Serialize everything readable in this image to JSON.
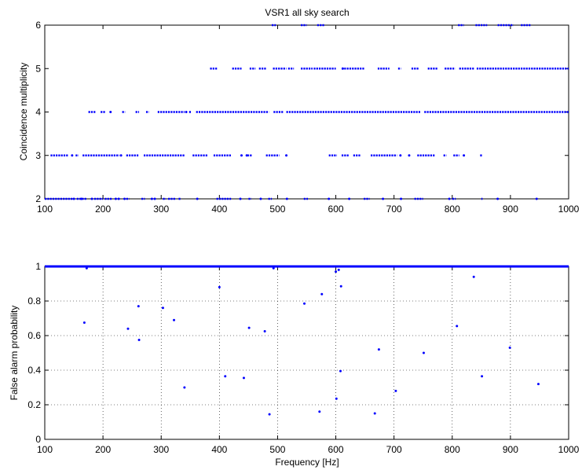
{
  "chart_data": [
    {
      "type": "scatter",
      "title": "VSR1 all sky search",
      "xlabel": "",
      "ylabel": "Coincidence multiplicity",
      "xlim": [
        100,
        1000
      ],
      "ylim": [
        2,
        6
      ],
      "xticks": [
        100,
        200,
        300,
        400,
        500,
        600,
        700,
        800,
        900,
        1000
      ],
      "yticks": [
        2,
        3,
        4,
        5,
        6
      ],
      "grid": false,
      "marker_color": "#0000ff",
      "levels": [
        {
          "y": 6,
          "ranges": [
            [
              490,
              497
            ],
            [
              540,
              550
            ],
            [
              568,
              580
            ],
            [
              810,
              820
            ],
            [
              840,
              860
            ],
            [
              878,
              905
            ],
            [
              918,
              935
            ]
          ]
        },
        {
          "y": 5,
          "ranges": [
            [
              384,
              397
            ],
            [
              422,
              438
            ],
            [
              452,
              462
            ],
            [
              468,
              480
            ],
            [
              492,
              515
            ],
            [
              518,
              528
            ],
            [
              540,
              560
            ],
            [
              562,
              600
            ],
            [
              610,
              650
            ],
            [
              672,
              692
            ],
            [
              707,
              712
            ],
            [
              730,
              742
            ],
            [
              758,
              775
            ],
            [
              787,
              805
            ],
            [
              812,
              838
            ],
            [
              842,
              1000
            ]
          ]
        },
        {
          "y": 4,
          "ranges": [
            [
              175,
              188
            ],
            [
              196,
              204
            ],
            [
              233,
              238
            ],
            [
              256,
              262
            ],
            [
              274,
              279
            ],
            [
              294,
              340
            ],
            [
              348,
              352
            ],
            [
              360,
              485
            ],
            [
              493,
              510
            ],
            [
              515,
              745
            ],
            [
              752,
              1000
            ]
          ]
        },
        {
          "y": 3,
          "ranges": [
            [
              110,
              140
            ],
            [
              153,
              158
            ],
            [
              165,
              228
            ],
            [
              240,
              262
            ],
            [
              270,
              340
            ],
            [
              354,
              380
            ],
            [
              390,
              420
            ],
            [
              448,
              456
            ],
            [
              480,
              503
            ],
            [
              588,
              602
            ],
            [
              610,
              622
            ],
            [
              630,
              643
            ],
            [
              660,
              705
            ],
            [
              740,
              770
            ],
            [
              785,
              790
            ],
            [
              802,
              812
            ],
            [
              848,
              852
            ]
          ]
        },
        {
          "y": 2,
          "ranges": [
            [
              100,
              148
            ],
            [
              155,
              172
            ],
            [
              185,
              200
            ],
            [
              203,
              215
            ],
            [
              240,
              245
            ],
            [
              266,
              272
            ],
            [
              303,
              308
            ],
            [
              312,
              324
            ],
            [
              330,
              334
            ],
            [
              395,
              420
            ],
            [
              450,
              455
            ],
            [
              484,
              490
            ],
            [
              545,
              552
            ],
            [
              648,
              658
            ],
            [
              735,
              750
            ],
            [
              800,
              806
            ],
            [
              850,
              852
            ]
          ]
        }
      ],
      "points": [
        [
          147,
          3
        ],
        [
          150,
          2
        ],
        [
          163,
          2
        ],
        [
          181,
          2
        ],
        [
          222,
          2
        ],
        [
          227,
          2
        ],
        [
          237,
          2
        ],
        [
          284,
          2
        ],
        [
          289,
          2
        ],
        [
          362,
          2
        ],
        [
          436,
          2
        ],
        [
          471,
          2
        ],
        [
          516,
          2
        ],
        [
          588,
          2
        ],
        [
          623,
          2
        ],
        [
          681,
          2
        ],
        [
          712,
          2
        ],
        [
          795,
          2
        ],
        [
          878,
          2
        ],
        [
          945,
          2
        ],
        [
          213,
          4
        ],
        [
          231,
          3
        ],
        [
          343,
          4
        ],
        [
          438,
          3
        ],
        [
          447,
          3
        ],
        [
          515,
          3
        ],
        [
          711,
          3
        ],
        [
          726,
          3
        ],
        [
          820,
          3
        ],
        [
          612,
          5
        ]
      ]
    },
    {
      "type": "scatter",
      "title": "",
      "xlabel": "Frequency [Hz]",
      "ylabel": "False alarm probability",
      "xlim": [
        100,
        1000
      ],
      "ylim": [
        0,
        1
      ],
      "xticks": [
        100,
        200,
        300,
        400,
        500,
        600,
        700,
        800,
        900,
        1000
      ],
      "yticks": [
        0,
        0.2,
        0.4,
        0.6,
        0.8,
        1
      ],
      "grid": true,
      "marker_color": "#0000ff",
      "baseline": {
        "y": 1,
        "range": [
          100,
          1000
        ]
      },
      "points": [
        [
          168,
          0.675
        ],
        [
          172,
          0.99
        ],
        [
          243,
          0.64
        ],
        [
          261,
          0.77
        ],
        [
          262,
          0.575
        ],
        [
          303,
          0.76
        ],
        [
          322,
          0.69
        ],
        [
          340,
          0.3
        ],
        [
          400,
          0.88
        ],
        [
          410,
          0.365
        ],
        [
          442,
          0.355
        ],
        [
          451,
          0.645
        ],
        [
          478,
          0.625
        ],
        [
          486,
          0.145
        ],
        [
          493,
          0.99
        ],
        [
          546,
          0.785
        ],
        [
          572,
          0.16
        ],
        [
          576,
          0.84
        ],
        [
          600,
          0.97
        ],
        [
          601,
          0.235
        ],
        [
          605,
          0.98
        ],
        [
          608,
          0.395
        ],
        [
          609,
          0.885
        ],
        [
          667,
          0.15
        ],
        [
          674,
          0.52
        ],
        [
          703,
          0.28
        ],
        [
          751,
          0.5
        ],
        [
          808,
          0.655
        ],
        [
          837,
          0.94
        ],
        [
          851,
          0.365
        ],
        [
          899,
          0.53
        ],
        [
          948,
          0.32
        ]
      ]
    }
  ]
}
